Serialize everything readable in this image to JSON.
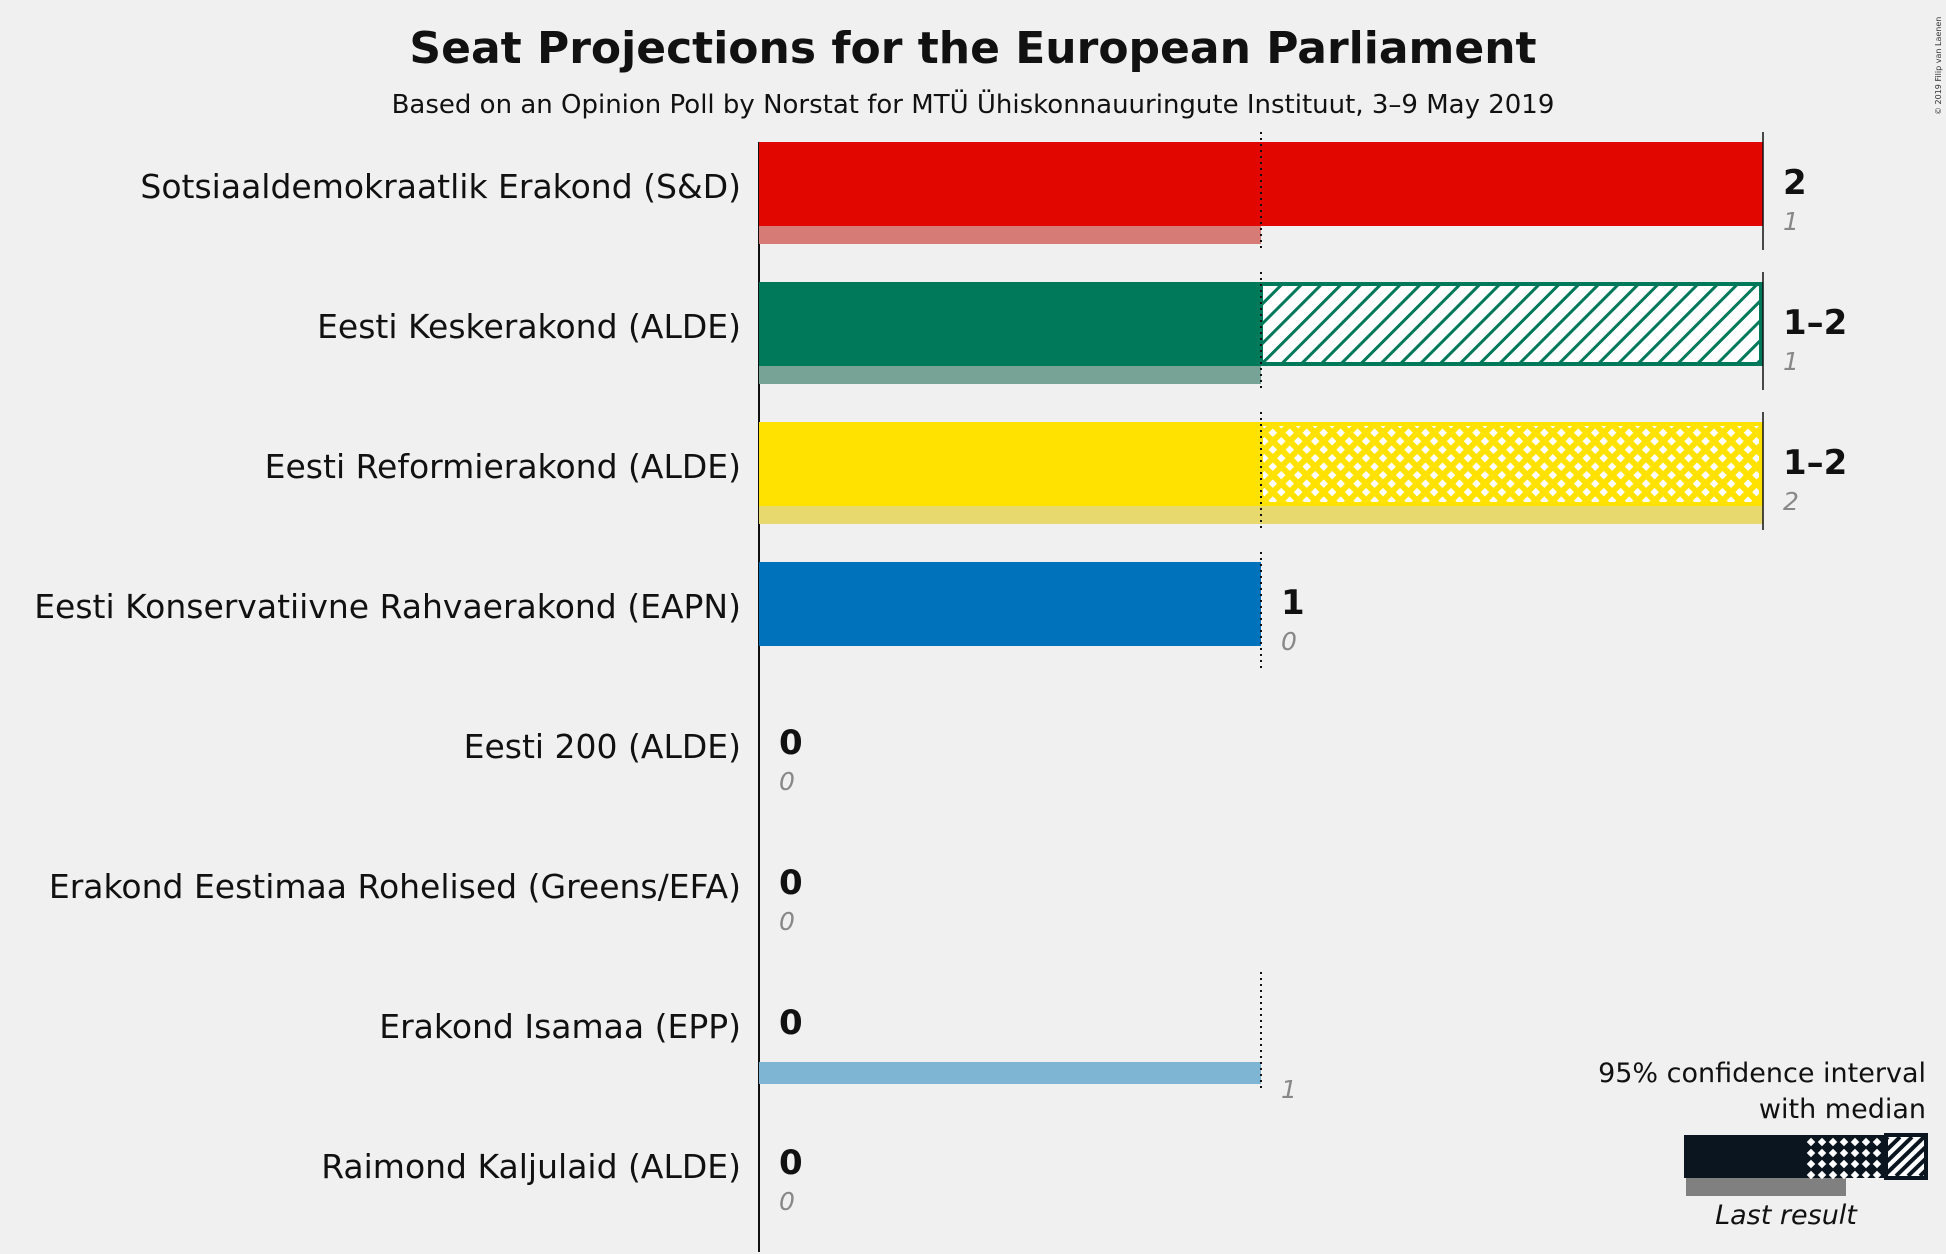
{
  "chart_data": {
    "type": "bar",
    "title": "Seat Projections for the European Parliament",
    "subtitle": "Based on an Opinion Poll by Norstat for MTÜ Ühiskonnauuringute Instituut, 3–9 May 2019",
    "copyright": "© 2019 Filip van Laenen",
    "xlim": [
      0,
      2
    ],
    "parties": [
      {
        "name": "Sotsiaaldemokraatlik Erakond (S&D)",
        "color": "#E10600",
        "last_color": "#D67B76",
        "low": 2,
        "median": 2,
        "high": 2,
        "label": "2",
        "last": 1,
        "last_label": "1"
      },
      {
        "name": "Eesti Keskerakond (ALDE)",
        "color": "#00785A",
        "last_color": "#76A396",
        "low": 1,
        "median": 1,
        "high": 2,
        "label": "1–2",
        "last": 1,
        "last_label": "1"
      },
      {
        "name": "Eesti Reformierakond (ALDE)",
        "color": "#FFE200",
        "last_color": "#E8D96F",
        "low": 1,
        "median": 1,
        "high": 2,
        "label": "1–2",
        "last": 2,
        "last_label": "2"
      },
      {
        "name": "Eesti Konservatiivne Rahvaerakond (EAPN)",
        "color": "#0072BB",
        "last_color": "#75A6C6",
        "low": 1,
        "median": 1,
        "high": 1,
        "label": "1",
        "last": 0,
        "last_label": "0"
      },
      {
        "name": "Eesti 200 (ALDE)",
        "color": "#31C6CE",
        "last_color": "#8FC9CC",
        "low": 0,
        "median": 0,
        "high": 0,
        "label": "0",
        "last": 0,
        "last_label": "0"
      },
      {
        "name": "Erakond Eestimaa Rohelised (Greens/EFA)",
        "color": "#64B445",
        "last_color": "#9DC28E",
        "low": 0,
        "median": 0,
        "high": 0,
        "label": "0",
        "last": 0,
        "last_label": "0"
      },
      {
        "name": "Erakond Isamaa (EPP)",
        "color": "#0092D0",
        "last_color": "#7DB5D3",
        "low": 0,
        "median": 0,
        "high": 0,
        "label": "0",
        "last": 1,
        "last_label": "1"
      },
      {
        "name": "Raimond Kaljulaid (ALDE)",
        "color": "#FFCC00",
        "last_color": "#E6D68A",
        "low": 0,
        "median": 0,
        "high": 0,
        "label": "0",
        "last": 0,
        "last_label": "0"
      }
    ],
    "legend": {
      "line1": "95% confidence interval",
      "line2": "with median",
      "last_result": "Last result"
    }
  }
}
